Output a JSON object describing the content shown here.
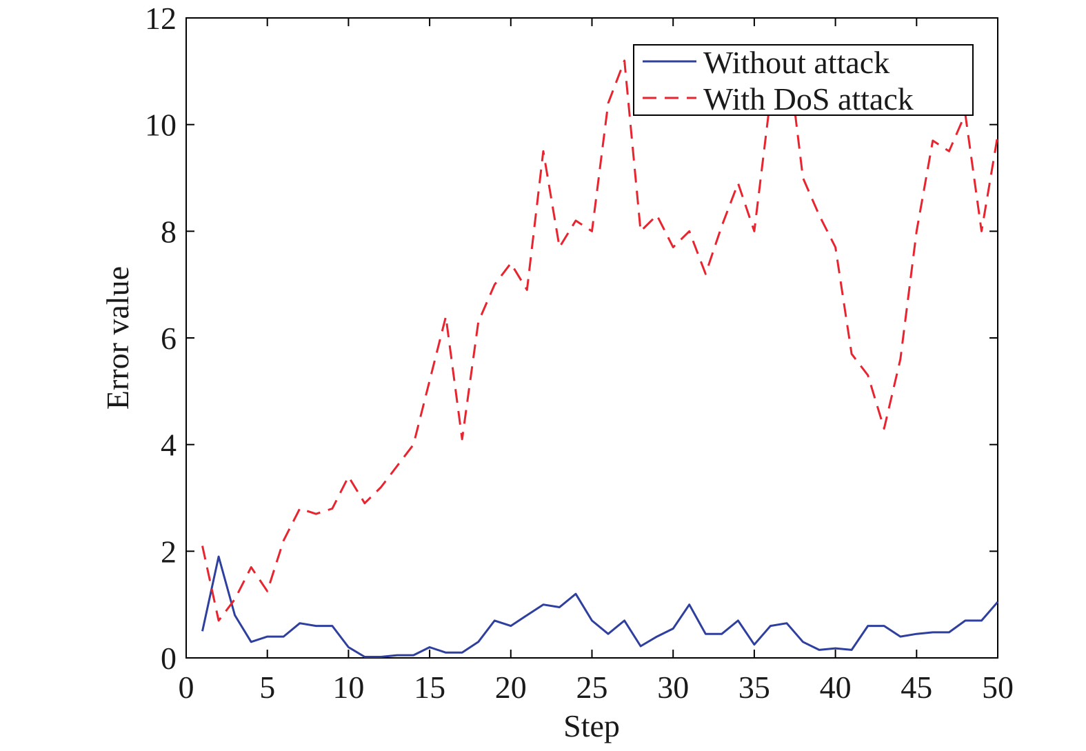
{
  "chart_data": {
    "type": "line",
    "xlabel": "Step",
    "ylabel": "Error value",
    "xlim": [
      0,
      50
    ],
    "ylim": [
      0,
      12
    ],
    "xticks": [
      0,
      5,
      10,
      15,
      20,
      25,
      30,
      35,
      40,
      45,
      50
    ],
    "yticks": [
      0,
      2,
      4,
      6,
      8,
      10,
      12
    ],
    "grid": false,
    "legend_position": "top-right",
    "x": [
      1,
      2,
      3,
      4,
      5,
      6,
      7,
      8,
      9,
      10,
      11,
      12,
      13,
      14,
      15,
      16,
      17,
      18,
      19,
      20,
      21,
      22,
      23,
      24,
      25,
      26,
      27,
      28,
      29,
      30,
      31,
      32,
      33,
      34,
      35,
      36,
      37,
      38,
      39,
      40,
      41,
      42,
      43,
      44,
      45,
      46,
      47,
      48,
      49,
      50
    ],
    "series": [
      {
        "name": "Without attack",
        "color": "#2e3f9e",
        "style": "solid",
        "values": [
          0.5,
          1.9,
          0.8,
          0.3,
          0.4,
          0.4,
          0.65,
          0.6,
          0.6,
          0.2,
          0.02,
          0.02,
          0.05,
          0.05,
          0.2,
          0.1,
          0.1,
          0.3,
          0.7,
          0.6,
          0.8,
          1.0,
          0.95,
          1.2,
          0.7,
          0.45,
          0.7,
          0.22,
          0.4,
          0.55,
          1.0,
          0.45,
          0.45,
          0.7,
          0.25,
          0.6,
          0.65,
          0.3,
          0.15,
          0.18,
          0.15,
          0.6,
          0.6,
          0.4,
          0.45,
          0.48,
          0.48,
          0.7,
          0.7,
          1.05
        ]
      },
      {
        "name": "With DoS attack",
        "color": "#e8242f",
        "style": "dashed",
        "values": [
          2.1,
          0.7,
          1.1,
          1.7,
          1.25,
          2.2,
          2.8,
          2.7,
          2.8,
          3.4,
          2.9,
          3.2,
          3.6,
          4.0,
          5.2,
          6.4,
          4.1,
          6.3,
          7.0,
          7.4,
          6.9,
          9.5,
          7.7,
          8.2,
          8.0,
          10.4,
          11.2,
          8.0,
          8.3,
          7.7,
          8.0,
          7.2,
          8.1,
          8.9,
          8.0,
          10.5,
          11.5,
          9.0,
          8.3,
          7.7,
          5.7,
          5.3,
          4.3,
          5.6,
          8.0,
          9.7,
          9.5,
          10.2,
          8.0,
          9.8
        ]
      }
    ]
  }
}
